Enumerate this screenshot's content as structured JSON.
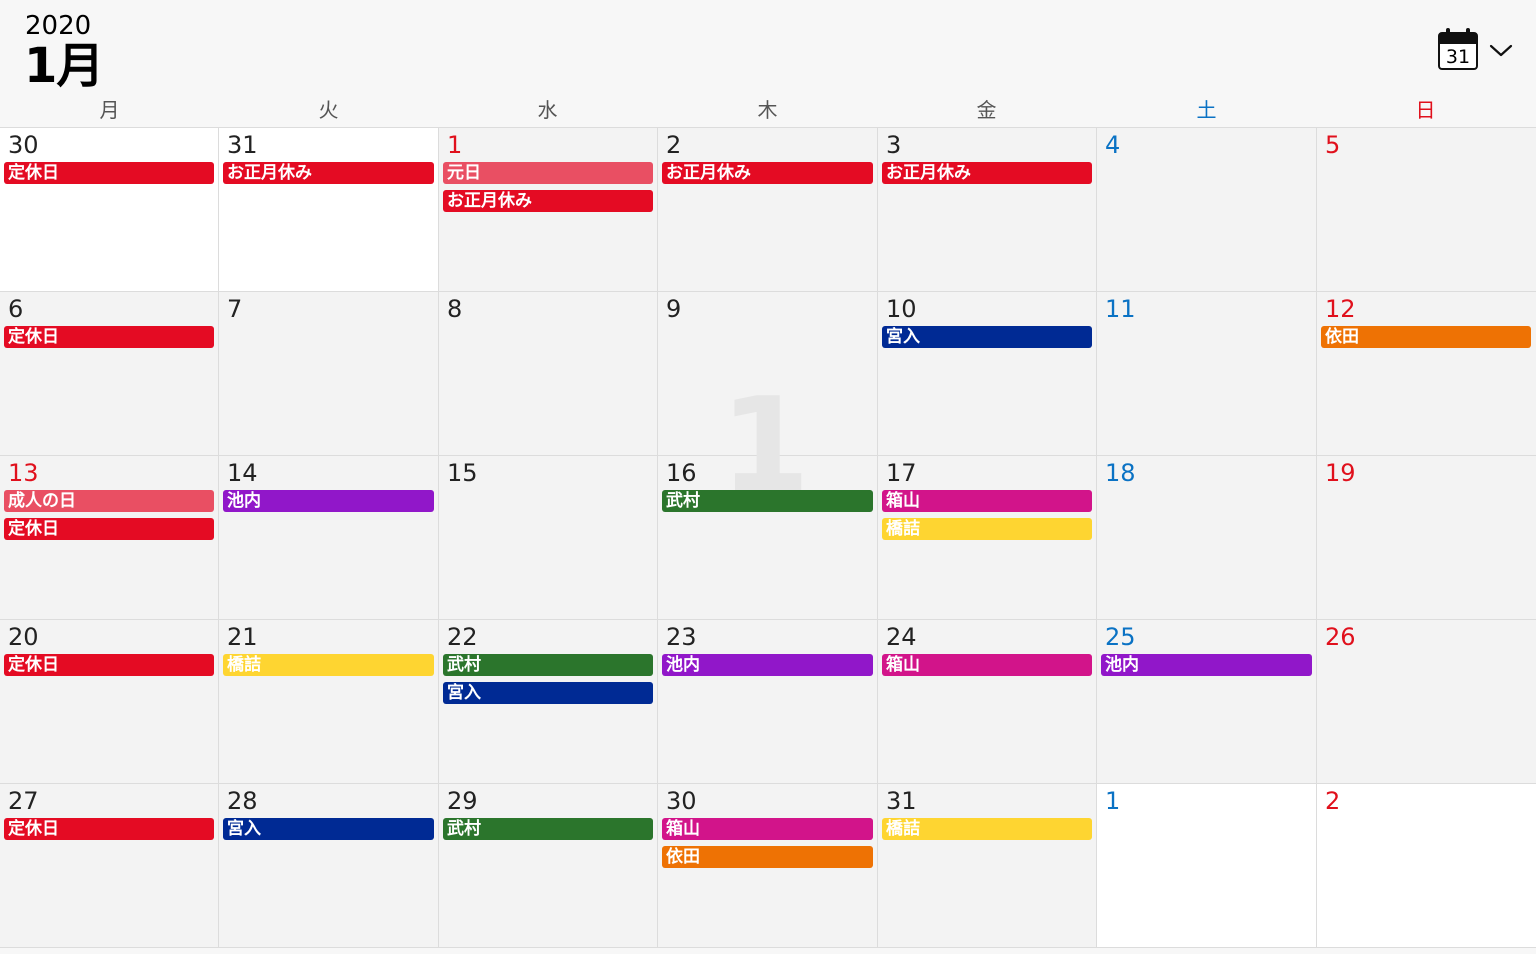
{
  "header": {
    "year": "2020",
    "month": "1月",
    "calendar_icon_day": "31"
  },
  "weekdays": [
    "月",
    "火",
    "水",
    "木",
    "金",
    "土",
    "日"
  ],
  "watermark_month": "1",
  "colors": {
    "holiday": "#e94f63",
    "closed": "#e40b23",
    "blue": "#002a94",
    "orange": "#ee7204",
    "purple": "#9117c9",
    "green": "#2b752c",
    "magenta": "#d2148a",
    "yellow": "#fed531"
  },
  "weeks": [
    [
      {
        "day": "30",
        "tone": "normal",
        "events": [
          {
            "label": "定休日",
            "color": "closed"
          }
        ]
      },
      {
        "day": "31",
        "tone": "normal",
        "events": [
          {
            "label": "お正月休み",
            "color": "closed"
          }
        ]
      },
      {
        "day": "1",
        "tone": "red",
        "events": [
          {
            "label": "元日",
            "color": "holiday"
          },
          {
            "label": "お正月休み",
            "color": "closed"
          }
        ]
      },
      {
        "day": "2",
        "tone": "normal",
        "events": [
          {
            "label": "お正月休み",
            "color": "closed"
          }
        ]
      },
      {
        "day": "3",
        "tone": "normal",
        "events": [
          {
            "label": "お正月休み",
            "color": "closed"
          }
        ]
      },
      {
        "day": "4",
        "tone": "blue",
        "events": []
      },
      {
        "day": "5",
        "tone": "red",
        "events": []
      }
    ],
    [
      {
        "day": "6",
        "tone": "normal",
        "events": [
          {
            "label": "定休日",
            "color": "closed"
          }
        ]
      },
      {
        "day": "7",
        "tone": "normal",
        "events": []
      },
      {
        "day": "8",
        "tone": "normal",
        "events": []
      },
      {
        "day": "9",
        "tone": "normal",
        "events": []
      },
      {
        "day": "10",
        "tone": "normal",
        "events": [
          {
            "label": "宮入",
            "color": "blue"
          }
        ]
      },
      {
        "day": "11",
        "tone": "blue",
        "events": []
      },
      {
        "day": "12",
        "tone": "red",
        "events": [
          {
            "label": "依田",
            "color": "orange"
          }
        ]
      }
    ],
    [
      {
        "day": "13",
        "tone": "red",
        "events": [
          {
            "label": "成人の日",
            "color": "holiday"
          },
          {
            "label": "定休日",
            "color": "closed"
          }
        ]
      },
      {
        "day": "14",
        "tone": "normal",
        "events": [
          {
            "label": "池内",
            "color": "purple"
          }
        ]
      },
      {
        "day": "15",
        "tone": "normal",
        "events": []
      },
      {
        "day": "16",
        "tone": "normal",
        "events": [
          {
            "label": "武村",
            "color": "green"
          }
        ]
      },
      {
        "day": "17",
        "tone": "normal",
        "events": [
          {
            "label": "箱山",
            "color": "magenta"
          },
          {
            "label": "橋詰",
            "color": "yellow"
          }
        ]
      },
      {
        "day": "18",
        "tone": "blue",
        "events": []
      },
      {
        "day": "19",
        "tone": "red",
        "events": []
      }
    ],
    [
      {
        "day": "20",
        "tone": "normal",
        "events": [
          {
            "label": "定休日",
            "color": "closed"
          }
        ]
      },
      {
        "day": "21",
        "tone": "normal",
        "events": [
          {
            "label": "橋詰",
            "color": "yellow"
          }
        ]
      },
      {
        "day": "22",
        "tone": "normal",
        "events": [
          {
            "label": "武村",
            "color": "green"
          },
          {
            "label": "宮入",
            "color": "blue"
          }
        ]
      },
      {
        "day": "23",
        "tone": "normal",
        "events": [
          {
            "label": "池内",
            "color": "purple"
          }
        ]
      },
      {
        "day": "24",
        "tone": "normal",
        "events": [
          {
            "label": "箱山",
            "color": "magenta"
          }
        ]
      },
      {
        "day": "25",
        "tone": "blue",
        "events": [
          {
            "label": "池内",
            "color": "purple"
          }
        ]
      },
      {
        "day": "26",
        "tone": "red",
        "events": []
      }
    ],
    [
      {
        "day": "27",
        "tone": "normal",
        "events": [
          {
            "label": "定休日",
            "color": "closed"
          }
        ]
      },
      {
        "day": "28",
        "tone": "normal",
        "events": [
          {
            "label": "宮入",
            "color": "blue"
          }
        ]
      },
      {
        "day": "29",
        "tone": "normal",
        "events": [
          {
            "label": "武村",
            "color": "green"
          }
        ]
      },
      {
        "day": "30",
        "tone": "normal",
        "events": [
          {
            "label": "箱山",
            "color": "magenta"
          },
          {
            "label": "依田",
            "color": "orange"
          }
        ]
      },
      {
        "day": "31",
        "tone": "normal",
        "events": [
          {
            "label": "橋詰",
            "color": "yellow"
          }
        ]
      },
      {
        "day": "1",
        "tone": "blue",
        "events": []
      },
      {
        "day": "2",
        "tone": "red",
        "events": []
      }
    ]
  ]
}
